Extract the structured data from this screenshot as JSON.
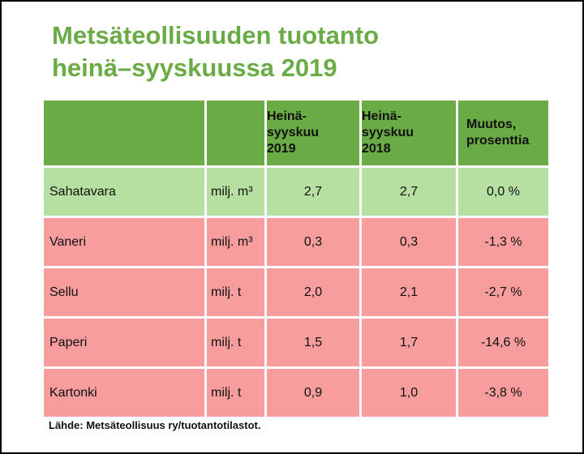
{
  "title": {
    "line1": "Metsäteollisuuden tuotanto",
    "line2": "heinä–syyskuussa 2019"
  },
  "table": {
    "headers": [
      "",
      "",
      "Heinä-syyskuu 2019",
      "Heinä-syyskuu 2018",
      "Muutos, prosenttia"
    ],
    "header_lines": {
      "col2": [
        "Heinä-",
        "syyskuu",
        "2019"
      ],
      "col3": [
        "Heinä-",
        "syyskuu",
        "2018"
      ],
      "col4": [
        "Muutos,",
        "prosenttia"
      ]
    },
    "rows": [
      {
        "product": "Sahatavara",
        "unit": "milj. m³",
        "y2019": "2,7",
        "y2018": "2,7",
        "change": "0,0 %",
        "status": "green"
      },
      {
        "product": "Vaneri",
        "unit": "milj. m³",
        "y2019": "0,3",
        "y2018": "0,3",
        "change": "-1,3 %",
        "status": "red"
      },
      {
        "product": "Sellu",
        "unit": "milj. t",
        "y2019": "2,0",
        "y2018": "2,1",
        "change": "-2,7 %",
        "status": "red"
      },
      {
        "product": "Paperi",
        "unit": "milj. t",
        "y2019": "1,5",
        "y2018": "1,7",
        "change": "-14,6 %",
        "status": "red"
      },
      {
        "product": "Kartonki",
        "unit": "milj. t",
        "y2019": "0,9",
        "y2018": "1,0",
        "change": "-3,8 %",
        "status": "red"
      }
    ]
  },
  "source": "Lähde: Metsäteollisuus ry/tuotantotilastot.",
  "colors": {
    "title": "#6aab45",
    "header": "#6aab45",
    "row_positive": "#b5e0a1",
    "row_negative": "#f79d9e"
  }
}
